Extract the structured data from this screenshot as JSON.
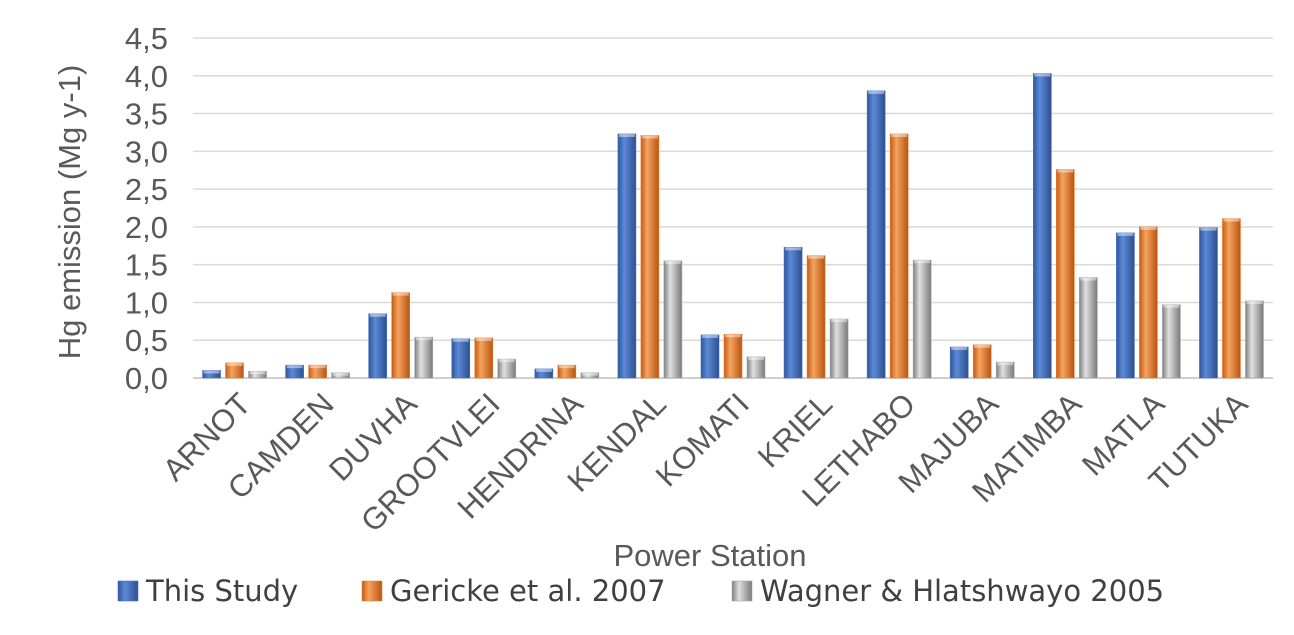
{
  "chart_data": {
    "type": "bar",
    "title": "",
    "xlabel": "Power Station",
    "ylabel": "Hg emission (Mg y-1)",
    "ylim": [
      0,
      4.5
    ],
    "ytick_step": 0.5,
    "grid": true,
    "legend_position": "bottom",
    "categories": [
      "ARNOT",
      "CAMDEN",
      "DUVHA",
      "GROOTVLEI",
      "HENDRINA",
      "KENDAL",
      "KOMATI",
      "KRIEL",
      "LETHABO",
      "MAJUBA",
      "MATIMBA",
      "MATLA",
      "TUTUKA"
    ],
    "series": [
      {
        "name": "This Study",
        "color": "#4472c4",
        "values": [
          0.1,
          0.17,
          0.85,
          0.52,
          0.12,
          3.23,
          0.57,
          1.73,
          3.8,
          0.41,
          4.03,
          1.92,
          1.99
        ]
      },
      {
        "name": "Gericke et al. 2007",
        "color": "#ed7d31",
        "values": [
          0.2,
          0.17,
          1.13,
          0.53,
          0.17,
          3.21,
          0.58,
          1.62,
          3.23,
          0.44,
          2.76,
          2.0,
          2.11
        ]
      },
      {
        "name": "Wagner & Hlatshwayo 2005",
        "color": "#a5a5a5",
        "values": [
          0.09,
          0.07,
          0.54,
          0.25,
          0.07,
          1.55,
          0.28,
          0.78,
          1.56,
          0.21,
          1.33,
          0.97,
          1.02
        ]
      }
    ]
  }
}
